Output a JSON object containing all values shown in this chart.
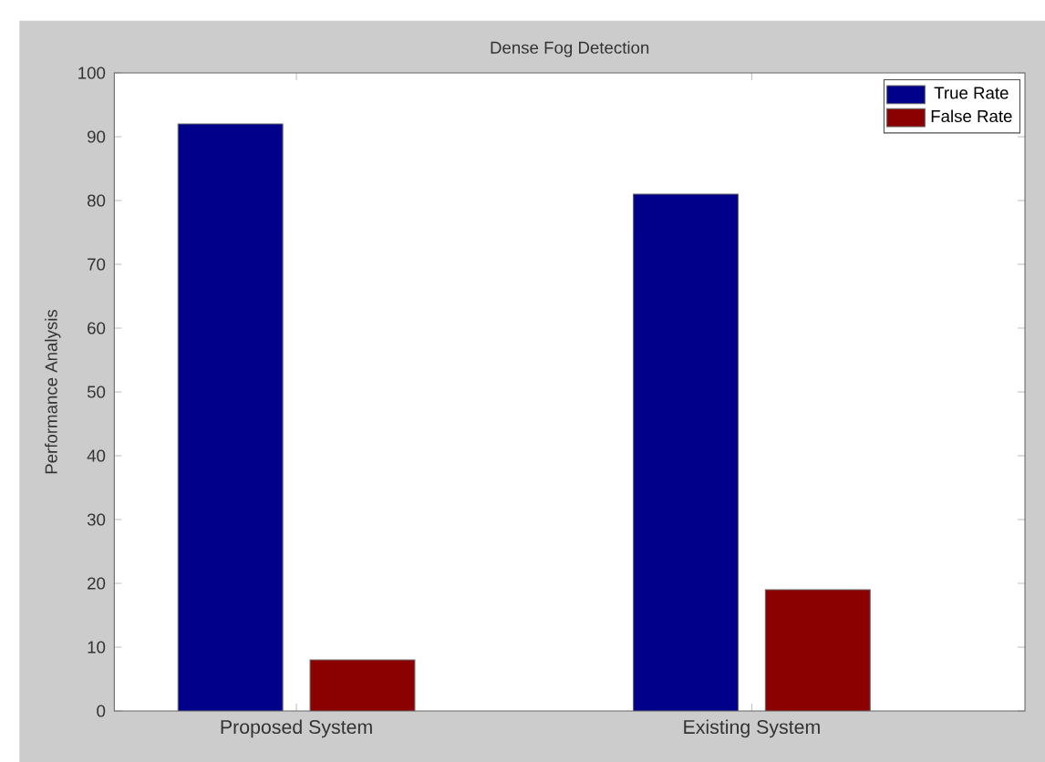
{
  "chart_data": {
    "type": "bar",
    "title": "Dense Fog Detection",
    "ylabel": "Performance Analysis",
    "categories": [
      "Proposed System",
      "Existing System"
    ],
    "series": [
      {
        "name": "True Rate",
        "color": "#00008b",
        "values": [
          92,
          81
        ]
      },
      {
        "name": "False Rate",
        "color": "#8b0000",
        "values": [
          8,
          19
        ]
      }
    ],
    "ylim": [
      0,
      100
    ],
    "yticks": [
      0,
      10,
      20,
      30,
      40,
      50,
      60,
      70,
      80,
      90,
      100
    ],
    "legend": "top right",
    "grid": false
  }
}
